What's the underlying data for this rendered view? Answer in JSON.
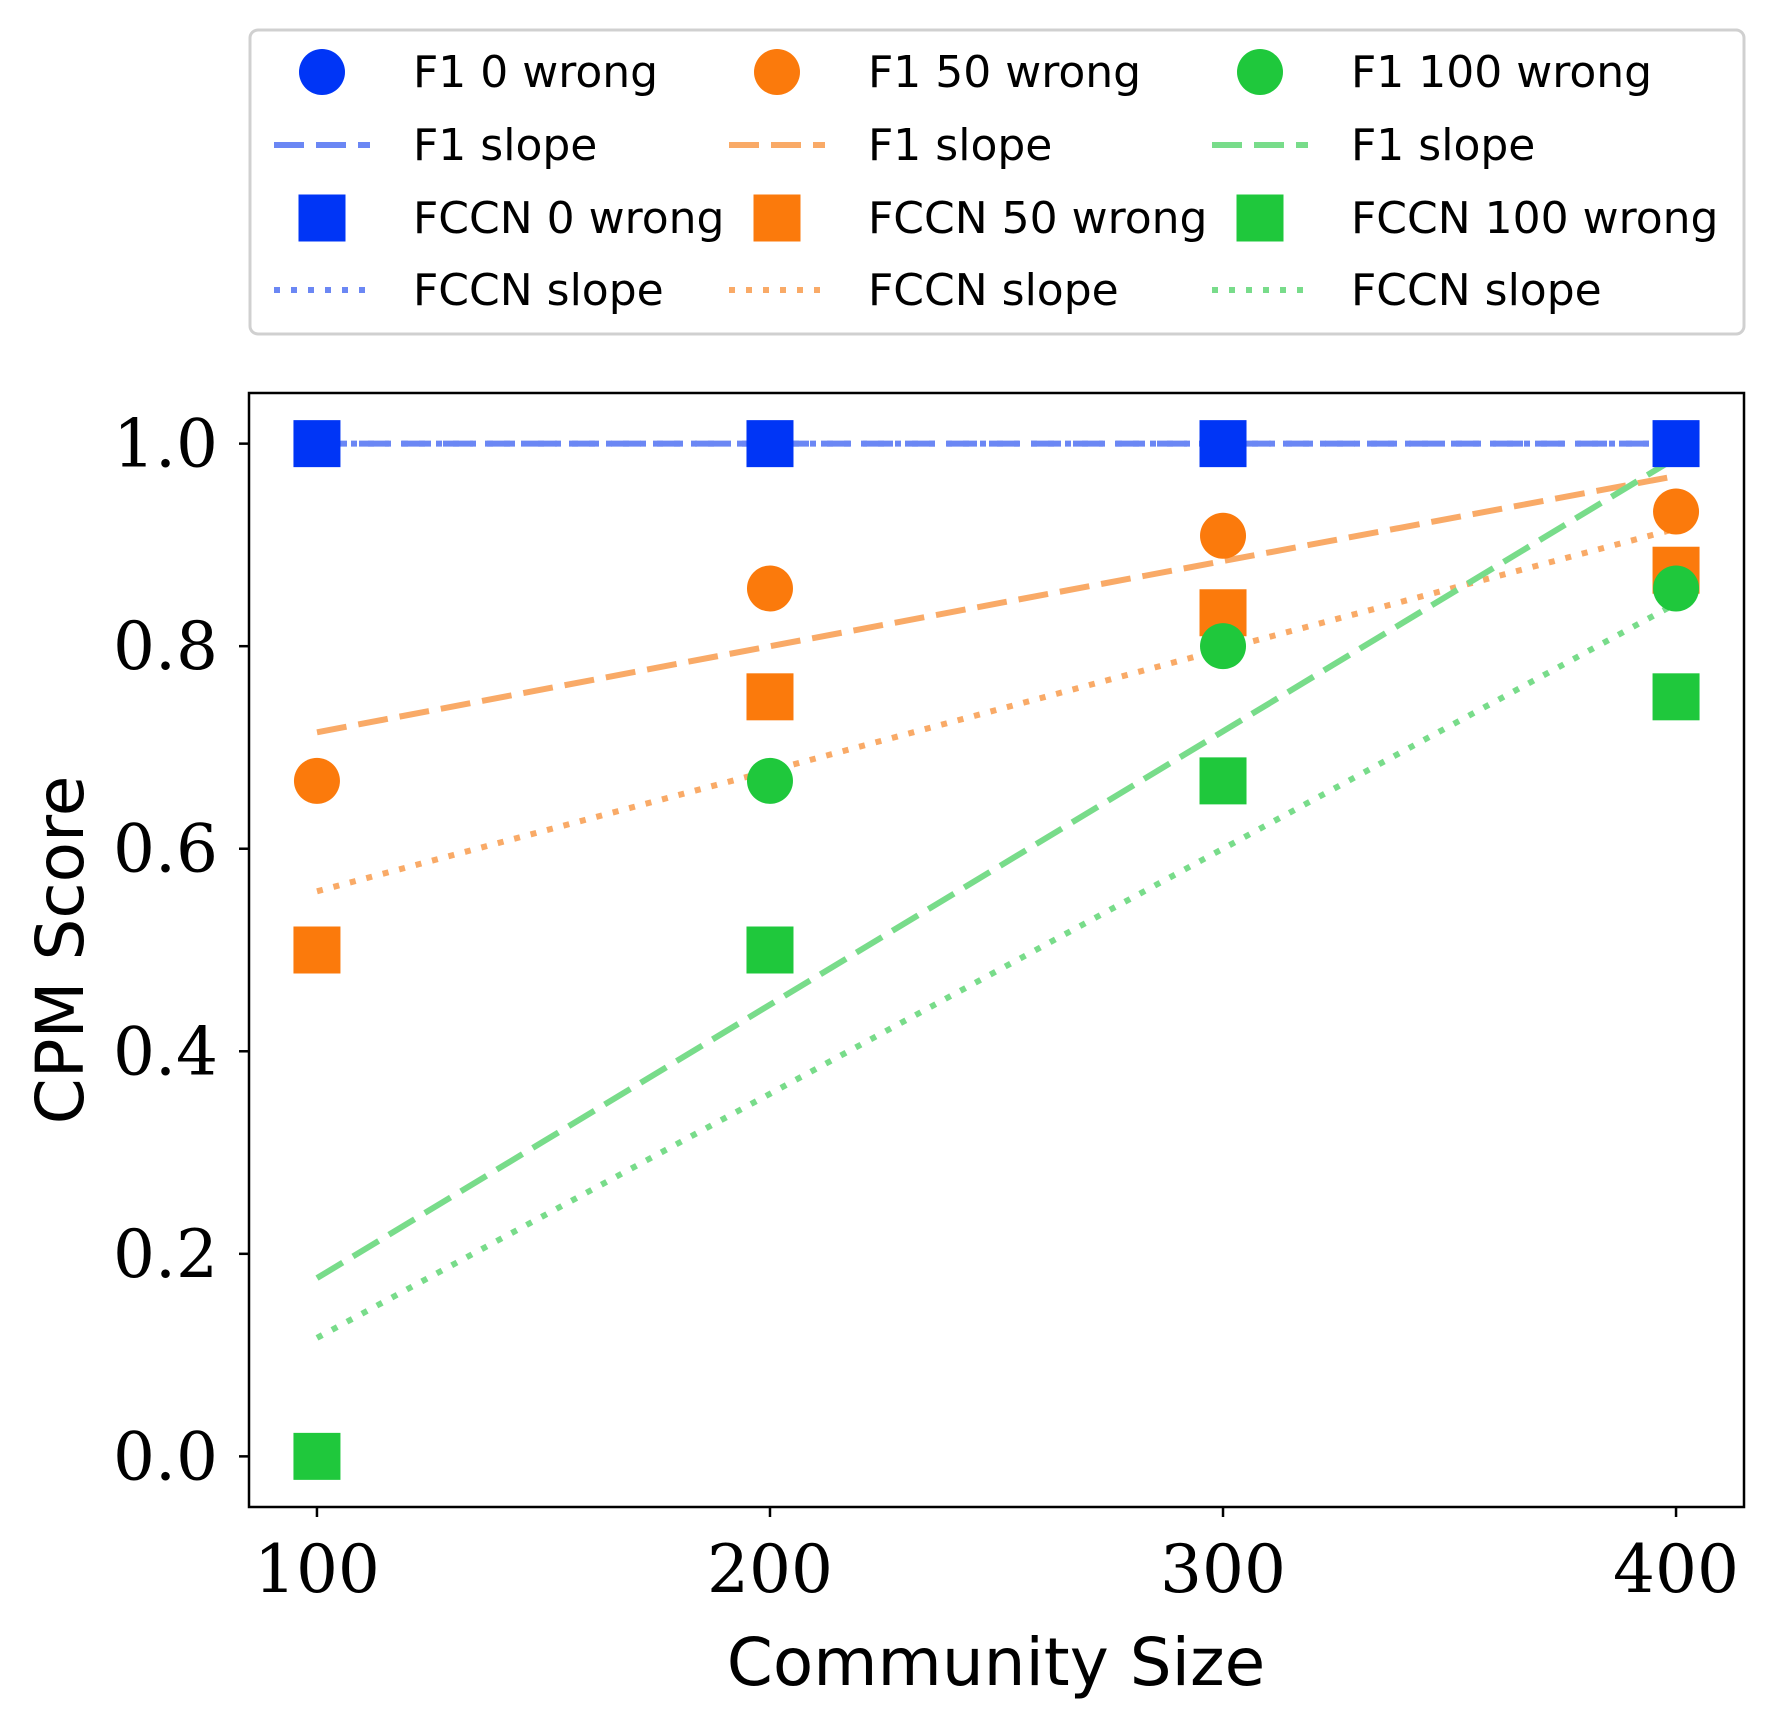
{
  "chart_data": {
    "type": "scatter",
    "title": "",
    "xlabel": "Community Size",
    "ylabel": "CPM Score",
    "xlim": [
      85,
      415
    ],
    "ylim": [
      -0.05,
      1.05
    ],
    "x": [
      100,
      200,
      300,
      400
    ],
    "x_ticks": [
      100,
      200,
      300,
      400
    ],
    "x_tick_labels": [
      "100",
      "200",
      "300",
      "400"
    ],
    "y_ticks": [
      0.0,
      0.2,
      0.4,
      0.6,
      0.8,
      1.0
    ],
    "y_tick_labels": [
      "0.0",
      "0.2",
      "0.4",
      "0.6",
      "0.8",
      "1.0"
    ],
    "grid": false,
    "legend_position": "top",
    "legend_columns": 3,
    "colors": {
      "blue": "#0035f6",
      "orange": "#fb7a0c",
      "green": "#1fc83c",
      "blue_line": "#6b87f4",
      "orange_line": "#f9aa67",
      "green_line": "#78dc8a"
    },
    "series": [
      {
        "name": "F1 0 wrong",
        "marker": "circle",
        "color": "#0035f6",
        "values": [
          1.0,
          1.0,
          1.0,
          1.0
        ]
      },
      {
        "name": "F1 slope",
        "style": "dashed",
        "color": "#6b87f4",
        "values": [
          1.0,
          1.0,
          1.0,
          1.0
        ]
      },
      {
        "name": "FCCN 0 wrong",
        "marker": "square",
        "color": "#0035f6",
        "values": [
          1.0,
          1.0,
          1.0,
          1.0
        ]
      },
      {
        "name": "FCCN slope",
        "style": "dotted",
        "color": "#6b87f4",
        "values": [
          1.0,
          1.0,
          1.0,
          1.0
        ]
      },
      {
        "name": "F1 50 wrong",
        "marker": "circle",
        "color": "#fb7a0c",
        "values": [
          0.667,
          0.857,
          0.909,
          0.933
        ]
      },
      {
        "name": "F1 slope",
        "style": "dashed",
        "color": "#f9aa67",
        "values": [
          0.715,
          0.8,
          0.884,
          0.968
        ]
      },
      {
        "name": "FCCN 50 wrong",
        "marker": "square",
        "color": "#fb7a0c",
        "values": [
          0.5,
          0.75,
          0.833,
          0.875
        ]
      },
      {
        "name": "FCCN slope",
        "style": "dotted",
        "color": "#f9aa67",
        "values": [
          0.558,
          0.677,
          0.797,
          0.916
        ]
      },
      {
        "name": "F1 100 wrong",
        "marker": "circle",
        "color": "#1fc83c",
        "values": [
          0.0,
          0.667,
          0.8,
          0.857
        ]
      },
      {
        "name": "F1 slope",
        "style": "dashed",
        "color": "#78dc8a",
        "values": [
          0.176,
          0.446,
          0.716,
          0.986
        ]
      },
      {
        "name": "FCCN 100 wrong",
        "marker": "square",
        "color": "#1fc83c",
        "values": [
          0.0,
          0.5,
          0.667,
          0.75
        ]
      },
      {
        "name": "FCCN slope",
        "style": "dotted",
        "color": "#78dc8a",
        "values": [
          0.117,
          0.358,
          0.6,
          0.842
        ]
      }
    ],
    "draw_order": [
      1,
      3,
      5,
      7,
      9,
      11,
      4,
      6,
      8,
      10,
      0,
      2
    ],
    "legend_order": [
      0,
      4,
      8,
      1,
      5,
      9,
      2,
      6,
      10,
      3,
      7,
      11
    ]
  }
}
